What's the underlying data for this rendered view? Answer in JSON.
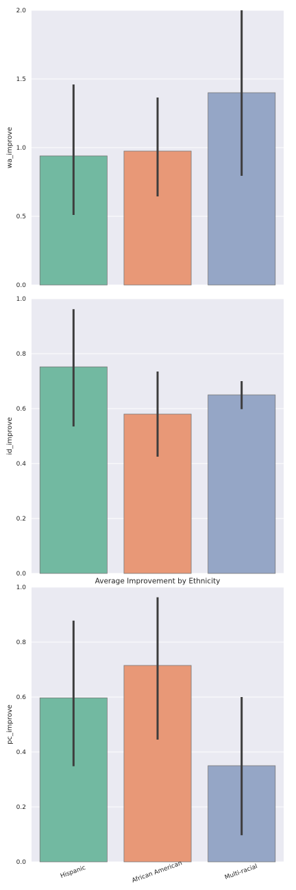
{
  "chart_data": {
    "type": "bar",
    "title": "Average Improvement by Ethnicity",
    "categories": [
      "Hispanic",
      "African American",
      "Multi-racial"
    ],
    "colors": [
      "#72b9a1",
      "#e89877",
      "#95a6c6"
    ],
    "error_color": "#3d3d3d",
    "grid": true,
    "subplots": [
      {
        "ylabel": "wa_improve",
        "ylim": [
          0,
          2.0
        ],
        "yticks": [
          "0.0",
          "0.5",
          "1.0",
          "1.5",
          "2.0"
        ],
        "values": [
          0.94,
          0.975,
          1.4
        ],
        "ci_low": [
          0.51,
          0.645,
          0.795
        ],
        "ci_high": [
          1.46,
          1.365,
          2.0
        ]
      },
      {
        "ylabel": "id_improve",
        "ylim": [
          0,
          1.0
        ],
        "yticks": [
          "0.0",
          "0.2",
          "0.4",
          "0.6",
          "0.8",
          "1.0"
        ],
        "values": [
          0.752,
          0.58,
          0.65
        ],
        "ci_low": [
          0.535,
          0.425,
          0.598
        ],
        "ci_high": [
          0.962,
          0.735,
          0.7
        ]
      },
      {
        "ylabel": "pc_improve",
        "ylim": [
          0,
          1.0
        ],
        "yticks": [
          "0.0",
          "0.2",
          "0.4",
          "0.6",
          "0.8",
          "1.0"
        ],
        "values": [
          0.597,
          0.715,
          0.35
        ],
        "ci_low": [
          0.348,
          0.445,
          0.097
        ],
        "ci_high": [
          0.878,
          0.963,
          0.6
        ]
      }
    ]
  }
}
